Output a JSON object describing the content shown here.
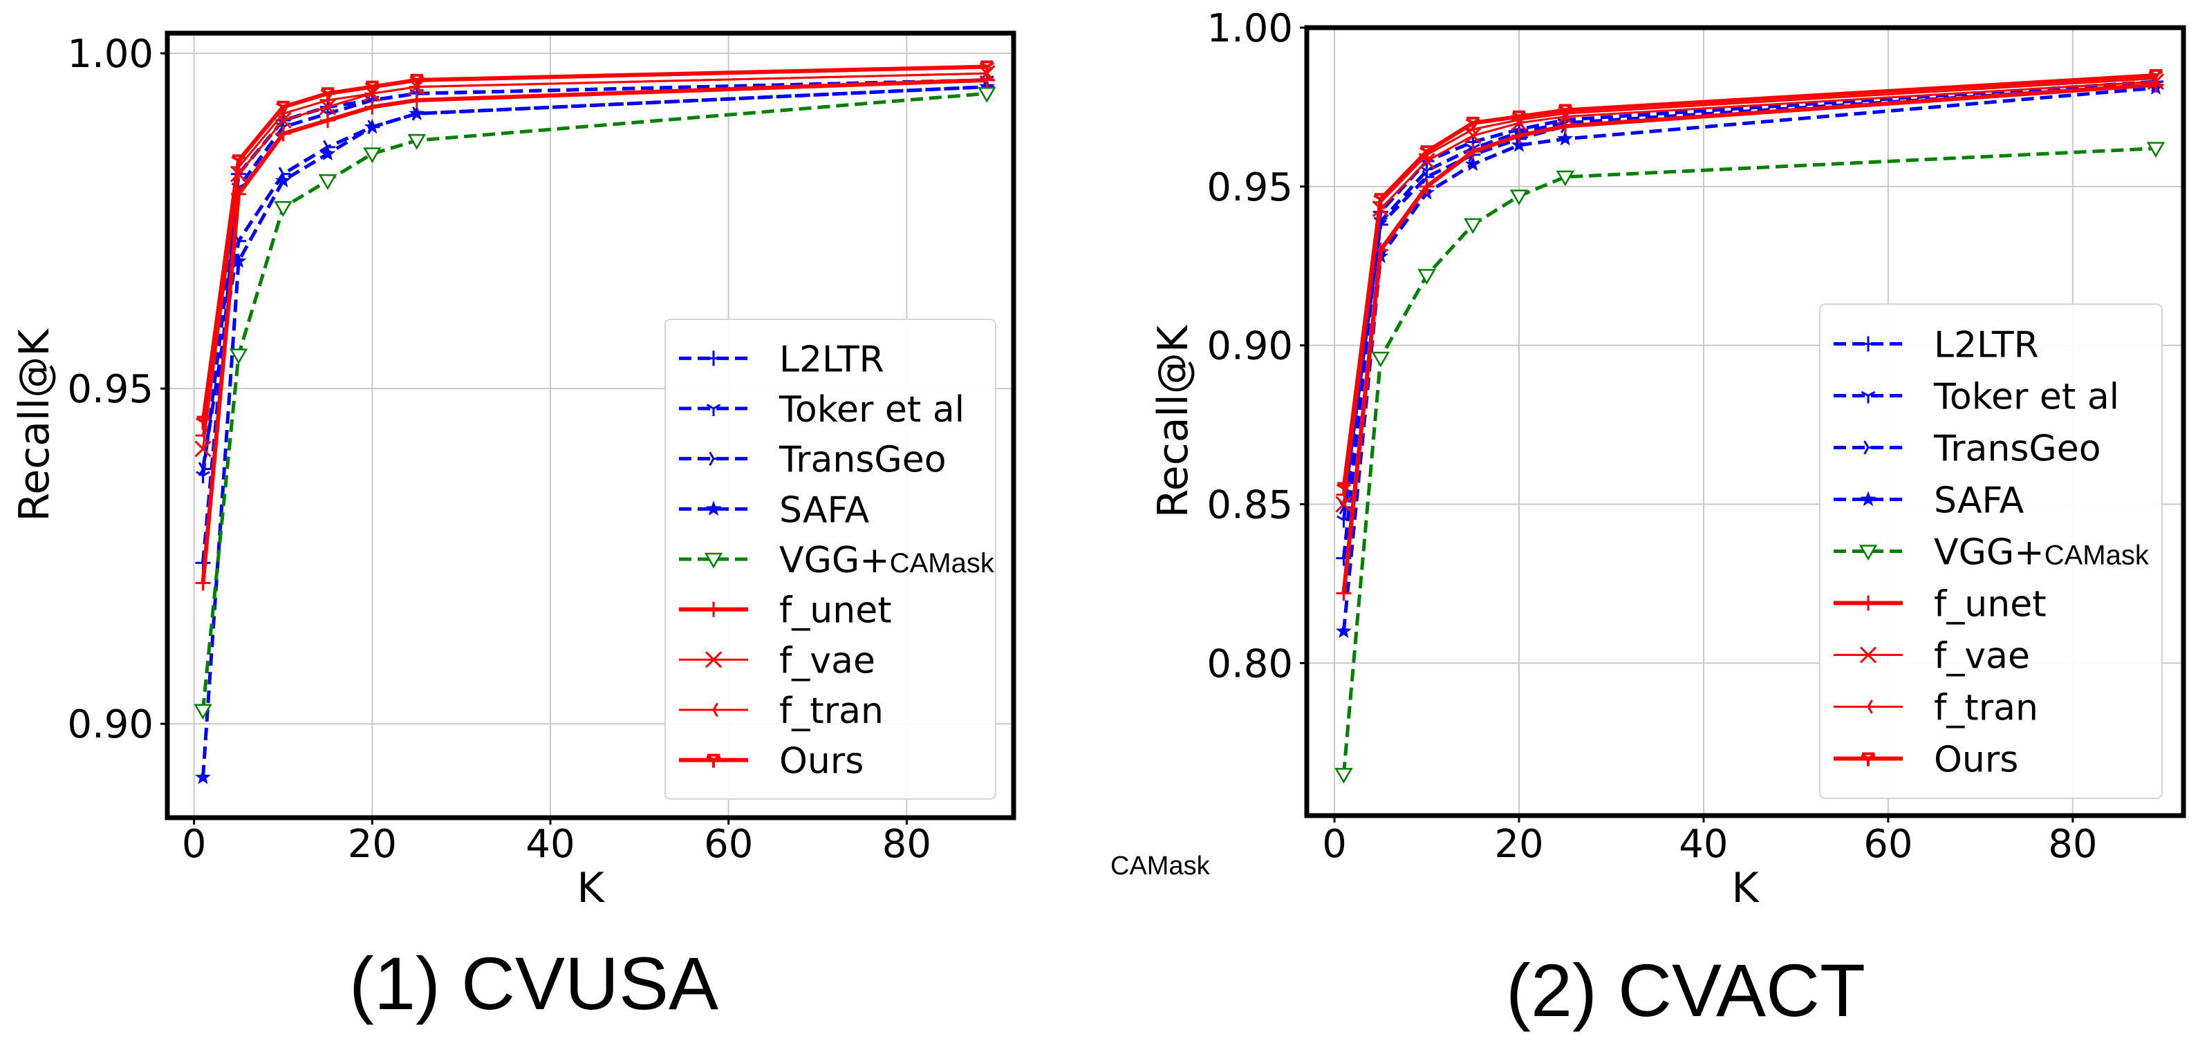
{
  "figure": {
    "captions": [
      "(1) CVUSA",
      "(2) CVACT"
    ],
    "floating_note": "CAMask"
  },
  "chart_data": [
    {
      "type": "line",
      "title": "(1) CVUSA",
      "xlabel": "K",
      "ylabel": "Recall@K",
      "xlim": [
        -3,
        92
      ],
      "ylim": [
        0.886,
        1.003
      ],
      "xticks": [
        0,
        20,
        40,
        60,
        80
      ],
      "xtick_labels": [
        "0",
        "20",
        "40",
        "60",
        "80"
      ],
      "yticks": [
        0.9,
        0.95,
        1.0
      ],
      "ytick_labels": [
        "0.90",
        "0.95",
        "1.00"
      ],
      "grid": true,
      "legend_position": "lower-right",
      "series": [
        {
          "name": "L2LTR",
          "legend_suffix": "",
          "color": "#0000ff",
          "style": "dashed",
          "marker": "plus",
          "x": [
            1,
            5,
            10,
            15,
            20,
            25,
            89
          ],
          "y": [
            0.924,
            0.982,
            0.99,
            0.992,
            0.993,
            0.994,
            0.996
          ]
        },
        {
          "name": "Toker et al",
          "legend_suffix": "",
          "color": "#0000ff",
          "style": "dashed",
          "marker": "tri_down",
          "x": [
            1,
            5,
            10,
            15,
            20,
            25,
            89
          ],
          "y": [
            0.937,
            0.98,
            0.989,
            0.991,
            0.993,
            0.994,
            0.996
          ]
        },
        {
          "name": "TransGeo",
          "legend_suffix": "",
          "color": "#0000ff",
          "style": "dashed",
          "marker": "tri_right",
          "x": [
            1,
            5,
            10,
            15,
            20,
            25,
            89
          ],
          "y": [
            0.938,
            0.972,
            0.982,
            0.986,
            0.989,
            0.991,
            0.995
          ]
        },
        {
          "name": "SAFA",
          "legend_suffix": "",
          "color": "#0000ff",
          "style": "dashed",
          "marker": "star",
          "x": [
            1,
            5,
            10,
            15,
            20,
            25,
            89
          ],
          "y": [
            0.892,
            0.969,
            0.981,
            0.985,
            0.989,
            0.991,
            0.995
          ]
        },
        {
          "name": "VGG+",
          "legend_suffix": "CAMask",
          "color": "#008000",
          "style": "dashed",
          "marker": "triangle_down_open",
          "x": [
            1,
            5,
            10,
            15,
            20,
            25,
            89
          ],
          "y": [
            0.902,
            0.955,
            0.977,
            0.981,
            0.985,
            0.987,
            0.994
          ]
        },
        {
          "name": "f_unet",
          "legend_suffix": "",
          "color": "#ff0000",
          "style": "solid",
          "marker": "plus",
          "width": "thick",
          "x": [
            1,
            5,
            10,
            15,
            20,
            25,
            89
          ],
          "y": [
            0.921,
            0.979,
            0.988,
            0.99,
            0.992,
            0.993,
            0.996
          ]
        },
        {
          "name": "f_vae",
          "legend_suffix": "",
          "color": "#ff0000",
          "style": "solid",
          "marker": "x",
          "x": [
            1,
            5,
            10,
            15,
            20,
            25,
            89
          ],
          "y": [
            0.941,
            0.982,
            0.99,
            0.992,
            0.994,
            0.995,
            0.997
          ]
        },
        {
          "name": "f_tran",
          "legend_suffix": "",
          "color": "#ff0000",
          "style": "solid",
          "marker": "tri_left",
          "x": [
            1,
            5,
            10,
            15,
            20,
            25,
            89
          ],
          "y": [
            0.943,
            0.983,
            0.991,
            0.993,
            0.994,
            0.995,
            0.997
          ]
        },
        {
          "name": "Ours",
          "legend_suffix": "",
          "color": "#ff0000",
          "style": "solid",
          "marker": "tri_down_thick",
          "width": "thick",
          "x": [
            1,
            5,
            10,
            15,
            20,
            25,
            89
          ],
          "y": [
            0.945,
            0.984,
            0.992,
            0.994,
            0.995,
            0.996,
            0.998
          ]
        }
      ]
    },
    {
      "type": "line",
      "title": "(2) CVACT",
      "xlabel": "K",
      "ylabel": "Recall@K",
      "xlim": [
        -3,
        92
      ],
      "ylim": [
        0.752,
        1.0
      ],
      "xticks": [
        0,
        20,
        40,
        60,
        80
      ],
      "xtick_labels": [
        "0",
        "20",
        "40",
        "60",
        "80"
      ],
      "yticks": [
        0.8,
        0.85,
        0.9,
        0.95,
        1.0
      ],
      "ytick_labels": [
        "0.80",
        "0.85",
        "0.90",
        "0.95",
        "1.00"
      ],
      "grid": true,
      "legend_position": "lower-right",
      "series": [
        {
          "name": "L2LTR",
          "legend_suffix": "",
          "color": "#0000ff",
          "style": "dashed",
          "marker": "plus",
          "x": [
            1,
            5,
            10,
            15,
            20,
            25,
            89
          ],
          "y": [
            0.833,
            0.942,
            0.958,
            0.964,
            0.968,
            0.971,
            0.983
          ]
        },
        {
          "name": "Toker et al",
          "legend_suffix": "",
          "color": "#0000ff",
          "style": "dashed",
          "marker": "tri_down",
          "x": [
            1,
            5,
            10,
            15,
            20,
            25,
            89
          ],
          "y": [
            0.845,
            0.939,
            0.955,
            0.962,
            0.967,
            0.97,
            0.982
          ]
        },
        {
          "name": "TransGeo",
          "legend_suffix": "",
          "color": "#0000ff",
          "style": "dashed",
          "marker": "tri_right",
          "x": [
            1,
            5,
            10,
            15,
            20,
            25,
            89
          ],
          "y": [
            0.849,
            0.938,
            0.953,
            0.96,
            0.965,
            0.969,
            0.982
          ]
        },
        {
          "name": "SAFA",
          "legend_suffix": "",
          "color": "#0000ff",
          "style": "dashed",
          "marker": "star",
          "x": [
            1,
            5,
            10,
            15,
            20,
            25,
            89
          ],
          "y": [
            0.81,
            0.928,
            0.948,
            0.957,
            0.963,
            0.965,
            0.981
          ]
        },
        {
          "name": "VGG+",
          "legend_suffix": "CAMask",
          "color": "#008000",
          "style": "dashed",
          "marker": "triangle_down_open",
          "x": [
            1,
            5,
            10,
            15,
            20,
            25,
            89
          ],
          "y": [
            0.765,
            0.896,
            0.922,
            0.938,
            0.947,
            0.953,
            0.962
          ]
        },
        {
          "name": "f_unet",
          "legend_suffix": "",
          "color": "#ff0000",
          "style": "solid",
          "marker": "plus",
          "width": "thick",
          "x": [
            1,
            5,
            10,
            15,
            20,
            25,
            89
          ],
          "y": [
            0.822,
            0.93,
            0.95,
            0.961,
            0.966,
            0.969,
            0.982
          ]
        },
        {
          "name": "f_vae",
          "legend_suffix": "",
          "color": "#ff0000",
          "style": "solid",
          "marker": "x",
          "x": [
            1,
            5,
            10,
            15,
            20,
            25,
            89
          ],
          "y": [
            0.85,
            0.943,
            0.958,
            0.966,
            0.97,
            0.972,
            0.983
          ]
        },
        {
          "name": "f_tran",
          "legend_suffix": "",
          "color": "#ff0000",
          "style": "solid",
          "marker": "tri_left",
          "x": [
            1,
            5,
            10,
            15,
            20,
            25,
            89
          ],
          "y": [
            0.853,
            0.945,
            0.96,
            0.968,
            0.971,
            0.973,
            0.984
          ]
        },
        {
          "name": "Ours",
          "legend_suffix": "",
          "color": "#ff0000",
          "style": "solid",
          "marker": "tri_down_thick",
          "width": "thick",
          "x": [
            1,
            5,
            10,
            15,
            20,
            25,
            89
          ],
          "y": [
            0.855,
            0.946,
            0.961,
            0.97,
            0.972,
            0.974,
            0.985
          ]
        }
      ]
    }
  ]
}
